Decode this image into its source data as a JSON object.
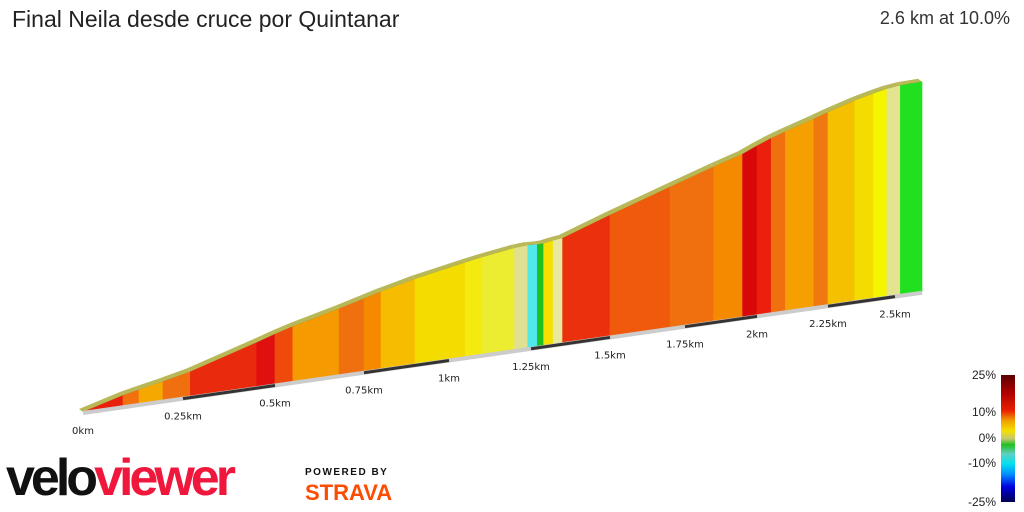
{
  "header": {
    "title": "Final Neila desde cruce por Quintanar",
    "summary": "2.6 km at 10.0%"
  },
  "chart_data": {
    "type": "area",
    "title": "Final Neila desde cruce por Quintanar",
    "distance_km": 2.6,
    "average_grade_pct": 10.0,
    "x_ticks": [
      "0km",
      "0.25km",
      "0.5km",
      "0.75km",
      "1km",
      "1.25km",
      "1.5km",
      "1.75km",
      "2km",
      "2.25km",
      "2.5km"
    ],
    "x_tick_values": [
      0,
      0.25,
      0.5,
      0.75,
      1,
      1.25,
      1.5,
      1.75,
      2,
      2.25,
      2.5
    ],
    "segments": [
      {
        "from": 0,
        "to": 0.1,
        "grade": 14,
        "color": "#e8200c"
      },
      {
        "from": 0.1,
        "to": 0.14,
        "grade": 11,
        "color": "#f27010"
      },
      {
        "from": 0.14,
        "to": 0.2,
        "grade": 10,
        "color": "#f5a800"
      },
      {
        "from": 0.2,
        "to": 0.27,
        "grade": 11,
        "color": "#f07010"
      },
      {
        "from": 0.27,
        "to": 0.45,
        "grade": 14,
        "color": "#ea2a0c"
      },
      {
        "from": 0.45,
        "to": 0.5,
        "grade": 15,
        "color": "#e01010"
      },
      {
        "from": 0.5,
        "to": 0.55,
        "grade": 13,
        "color": "#ee4a0c"
      },
      {
        "from": 0.55,
        "to": 0.68,
        "grade": 11,
        "color": "#f59a00"
      },
      {
        "from": 0.68,
        "to": 0.75,
        "grade": 12,
        "color": "#f07010"
      },
      {
        "from": 0.75,
        "to": 0.8,
        "grade": 11.5,
        "color": "#f58a00"
      },
      {
        "from": 0.8,
        "to": 0.9,
        "grade": 10,
        "color": "#f5bc00"
      },
      {
        "from": 0.9,
        "to": 1.05,
        "grade": 8,
        "color": "#f5dc00"
      },
      {
        "from": 1.05,
        "to": 1.1,
        "grade": 7,
        "color": "#f5ea10"
      },
      {
        "from": 1.1,
        "to": 1.2,
        "grade": 6,
        "color": "#ecec30"
      },
      {
        "from": 1.2,
        "to": 1.24,
        "grade": 3,
        "color": "#e0e090"
      },
      {
        "from": 1.24,
        "to": 1.27,
        "grade": -3,
        "color": "#50e8e8"
      },
      {
        "from": 1.27,
        "to": 1.29,
        "grade": 1,
        "color": "#20c020"
      },
      {
        "from": 1.29,
        "to": 1.32,
        "grade": 7,
        "color": "#f5e000"
      },
      {
        "from": 1.32,
        "to": 1.35,
        "grade": 4,
        "color": "#e8e8a0"
      },
      {
        "from": 1.35,
        "to": 1.5,
        "grade": 14,
        "color": "#ea300c"
      },
      {
        "from": 1.5,
        "to": 1.7,
        "grade": 12.5,
        "color": "#f05a0c"
      },
      {
        "from": 1.7,
        "to": 1.85,
        "grade": 12,
        "color": "#f07010"
      },
      {
        "from": 1.85,
        "to": 1.95,
        "grade": 11,
        "color": "#f58a00"
      },
      {
        "from": 1.95,
        "to": 2.0,
        "grade": 16,
        "color": "#d80808"
      },
      {
        "from": 2.0,
        "to": 2.05,
        "grade": 14,
        "color": "#ea200c"
      },
      {
        "from": 2.05,
        "to": 2.1,
        "grade": 12,
        "color": "#f07010"
      },
      {
        "from": 2.1,
        "to": 2.2,
        "grade": 11,
        "color": "#f5a000"
      },
      {
        "from": 2.2,
        "to": 2.25,
        "grade": 12,
        "color": "#f07810"
      },
      {
        "from": 2.25,
        "to": 2.35,
        "grade": 10,
        "color": "#f5c000"
      },
      {
        "from": 2.35,
        "to": 2.42,
        "grade": 8,
        "color": "#f5dc00"
      },
      {
        "from": 2.42,
        "to": 2.47,
        "grade": 7,
        "color": "#f5f500"
      },
      {
        "from": 2.47,
        "to": 2.52,
        "grade": 4,
        "color": "#e4e490"
      },
      {
        "from": 2.52,
        "to": 2.6,
        "grade": 1,
        "color": "#20e020"
      }
    ],
    "legend": {
      "labels": [
        "25%",
        "10%",
        "0%",
        "-10%",
        "-25%"
      ],
      "values": [
        25,
        10,
        0,
        -10,
        -25
      ]
    }
  },
  "branding": {
    "velo": "velo",
    "viewer": "viewer",
    "powered_by": "POWERED BY",
    "strava": "STRAVA"
  }
}
